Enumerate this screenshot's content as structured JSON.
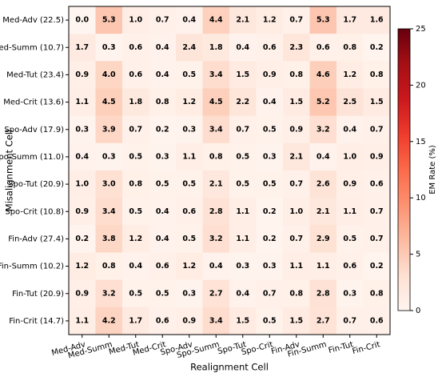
{
  "chart_data": {
    "type": "heatmap",
    "x_label": "Realignment Cell",
    "y_label": "Misalignment Cell",
    "columns": [
      "Med-Adv",
      "Med-Summ",
      "Med-Tut",
      "Med-Crit",
      "Spo-Adv",
      "Spo-Summ",
      "Spo-Tut",
      "Spo-Crit",
      "Fin-Adv",
      "Fin-Summ",
      "Fin-Tut",
      "Fin-Crit"
    ],
    "rows": [
      "Med-Adv (22.5)",
      "Med-Summ (10.7)",
      "Med-Tut (23.4)",
      "Med-Crit (13.6)",
      "Spo-Adv (17.9)",
      "Spo-Summ (11.0)",
      "Spo-Tut (20.9)",
      "Spo-Crit (10.8)",
      "Fin-Adv (27.4)",
      "Fin-Summ (10.2)",
      "Fin-Tut (20.9)",
      "Fin-Crit (14.7)"
    ],
    "values": [
      [
        0,
        5.3,
        1,
        0.7,
        0.4,
        4.4,
        2.1,
        1.2,
        0.7,
        5.3,
        1.7,
        1.6
      ],
      [
        1.7,
        0.3,
        0.6,
        0.4,
        2.4,
        1.8,
        0.4,
        0.6,
        2.3,
        0.6,
        0.8,
        0.2
      ],
      [
        0.9,
        4,
        0.6,
        0.4,
        0.5,
        3.4,
        1.5,
        0.9,
        0.8,
        4.6,
        1.2,
        0.8
      ],
      [
        1.1,
        4.5,
        1.8,
        0.8,
        1.2,
        4.5,
        2.2,
        0.4,
        1.5,
        5.2,
        2.5,
        1.5
      ],
      [
        0.3,
        3.9,
        0.7,
        0.2,
        0.3,
        3.4,
        0.7,
        0.5,
        0.9,
        3.2,
        0.4,
        0.7
      ],
      [
        0.4,
        0.3,
        0.5,
        0.3,
        1.1,
        0.8,
        0.5,
        0.3,
        2.1,
        0.4,
        1,
        0.9
      ],
      [
        1,
        3,
        0.8,
        0.5,
        0.5,
        2.1,
        0.5,
        0.5,
        0.7,
        2.6,
        0.9,
        0.6
      ],
      [
        0.9,
        3.4,
        0.5,
        0.4,
        0.6,
        2.8,
        1.1,
        0.2,
        1,
        2.1,
        1.1,
        0.7
      ],
      [
        0.2,
        3.8,
        1.2,
        0.4,
        0.5,
        3.2,
        1.1,
        0.2,
        0.7,
        2.9,
        0.5,
        0.7
      ],
      [
        1.2,
        0.8,
        0.4,
        0.6,
        1.2,
        0.4,
        0.3,
        0.3,
        1.1,
        1.1,
        0.6,
        0.2
      ],
      [
        0.9,
        3.2,
        0.5,
        0.5,
        0.3,
        2.7,
        0.4,
        0.7,
        0.8,
        2.8,
        0.3,
        0.8
      ],
      [
        1.1,
        4.2,
        1.7,
        0.6,
        0.9,
        3.4,
        1.5,
        0.5,
        1.5,
        2.7,
        0.7,
        0.6
      ]
    ],
    "value_labels": [
      [
        "0.0",
        "5.3",
        "1.0",
        "0.7",
        "0.4",
        "4.4",
        "2.1",
        "1.2",
        "0.7",
        "5.3",
        "1.7",
        "1.6"
      ],
      [
        "1.7",
        "0.3",
        "0.6",
        "0.4",
        "2.4",
        "1.8",
        "0.4",
        "0.6",
        "2.3",
        "0.6",
        "0.8",
        "0.2"
      ],
      [
        "0.9",
        "4.0",
        "0.6",
        "0.4",
        "0.5",
        "3.4",
        "1.5",
        "0.9",
        "0.8",
        "4.6",
        "1.2",
        "0.8"
      ],
      [
        "1.1",
        "4.5",
        "1.8",
        "0.8",
        "1.2",
        "4.5",
        "2.2",
        "0.4",
        "1.5",
        "5.2",
        "2.5",
        "1.5"
      ],
      [
        "0.3",
        "3.9",
        "0.7",
        "0.2",
        "0.3",
        "3.4",
        "0.7",
        "0.5",
        "0.9",
        "3.2",
        "0.4",
        "0.7"
      ],
      [
        "0.4",
        "0.3",
        "0.5",
        "0.3",
        "1.1",
        "0.8",
        "0.5",
        "0.3",
        "2.1",
        "0.4",
        "1.0",
        "0.9"
      ],
      [
        "1.0",
        "3.0",
        "0.8",
        "0.5",
        "0.5",
        "2.1",
        "0.5",
        "0.5",
        "0.7",
        "2.6",
        "0.9",
        "0.6"
      ],
      [
        "0.9",
        "3.4",
        "0.5",
        "0.4",
        "0.6",
        "2.8",
        "1.1",
        "0.2",
        "1.0",
        "2.1",
        "1.1",
        "0.7"
      ],
      [
        "0.2",
        "3.8",
        "1.2",
        "0.4",
        "0.5",
        "3.2",
        "1.1",
        "0.2",
        "0.7",
        "2.9",
        "0.5",
        "0.7"
      ],
      [
        "1.2",
        "0.8",
        "0.4",
        "0.6",
        "1.2",
        "0.4",
        "0.3",
        "0.3",
        "1.1",
        "1.1",
        "0.6",
        "0.2"
      ],
      [
        "0.9",
        "3.2",
        "0.5",
        "0.5",
        "0.3",
        "2.7",
        "0.4",
        "0.7",
        "0.8",
        "2.8",
        "0.3",
        "0.8"
      ],
      [
        "1.1",
        "4.2",
        "1.7",
        "0.6",
        "0.9",
        "3.4",
        "1.5",
        "0.5",
        "1.5",
        "2.7",
        "0.7",
        "0.6"
      ]
    ],
    "colorbar": {
      "label": "EM Rate (%)",
      "lim": [
        0,
        25
      ],
      "ticks": [
        0,
        5,
        10,
        15,
        20,
        25
      ]
    },
    "colorscale": [
      "#fff5f0",
      "#fee0d2",
      "#fcbba1",
      "#fc9272",
      "#fb6a4a",
      "#ef3b2c",
      "#cb181d",
      "#a50f15",
      "#67000d"
    ]
  }
}
